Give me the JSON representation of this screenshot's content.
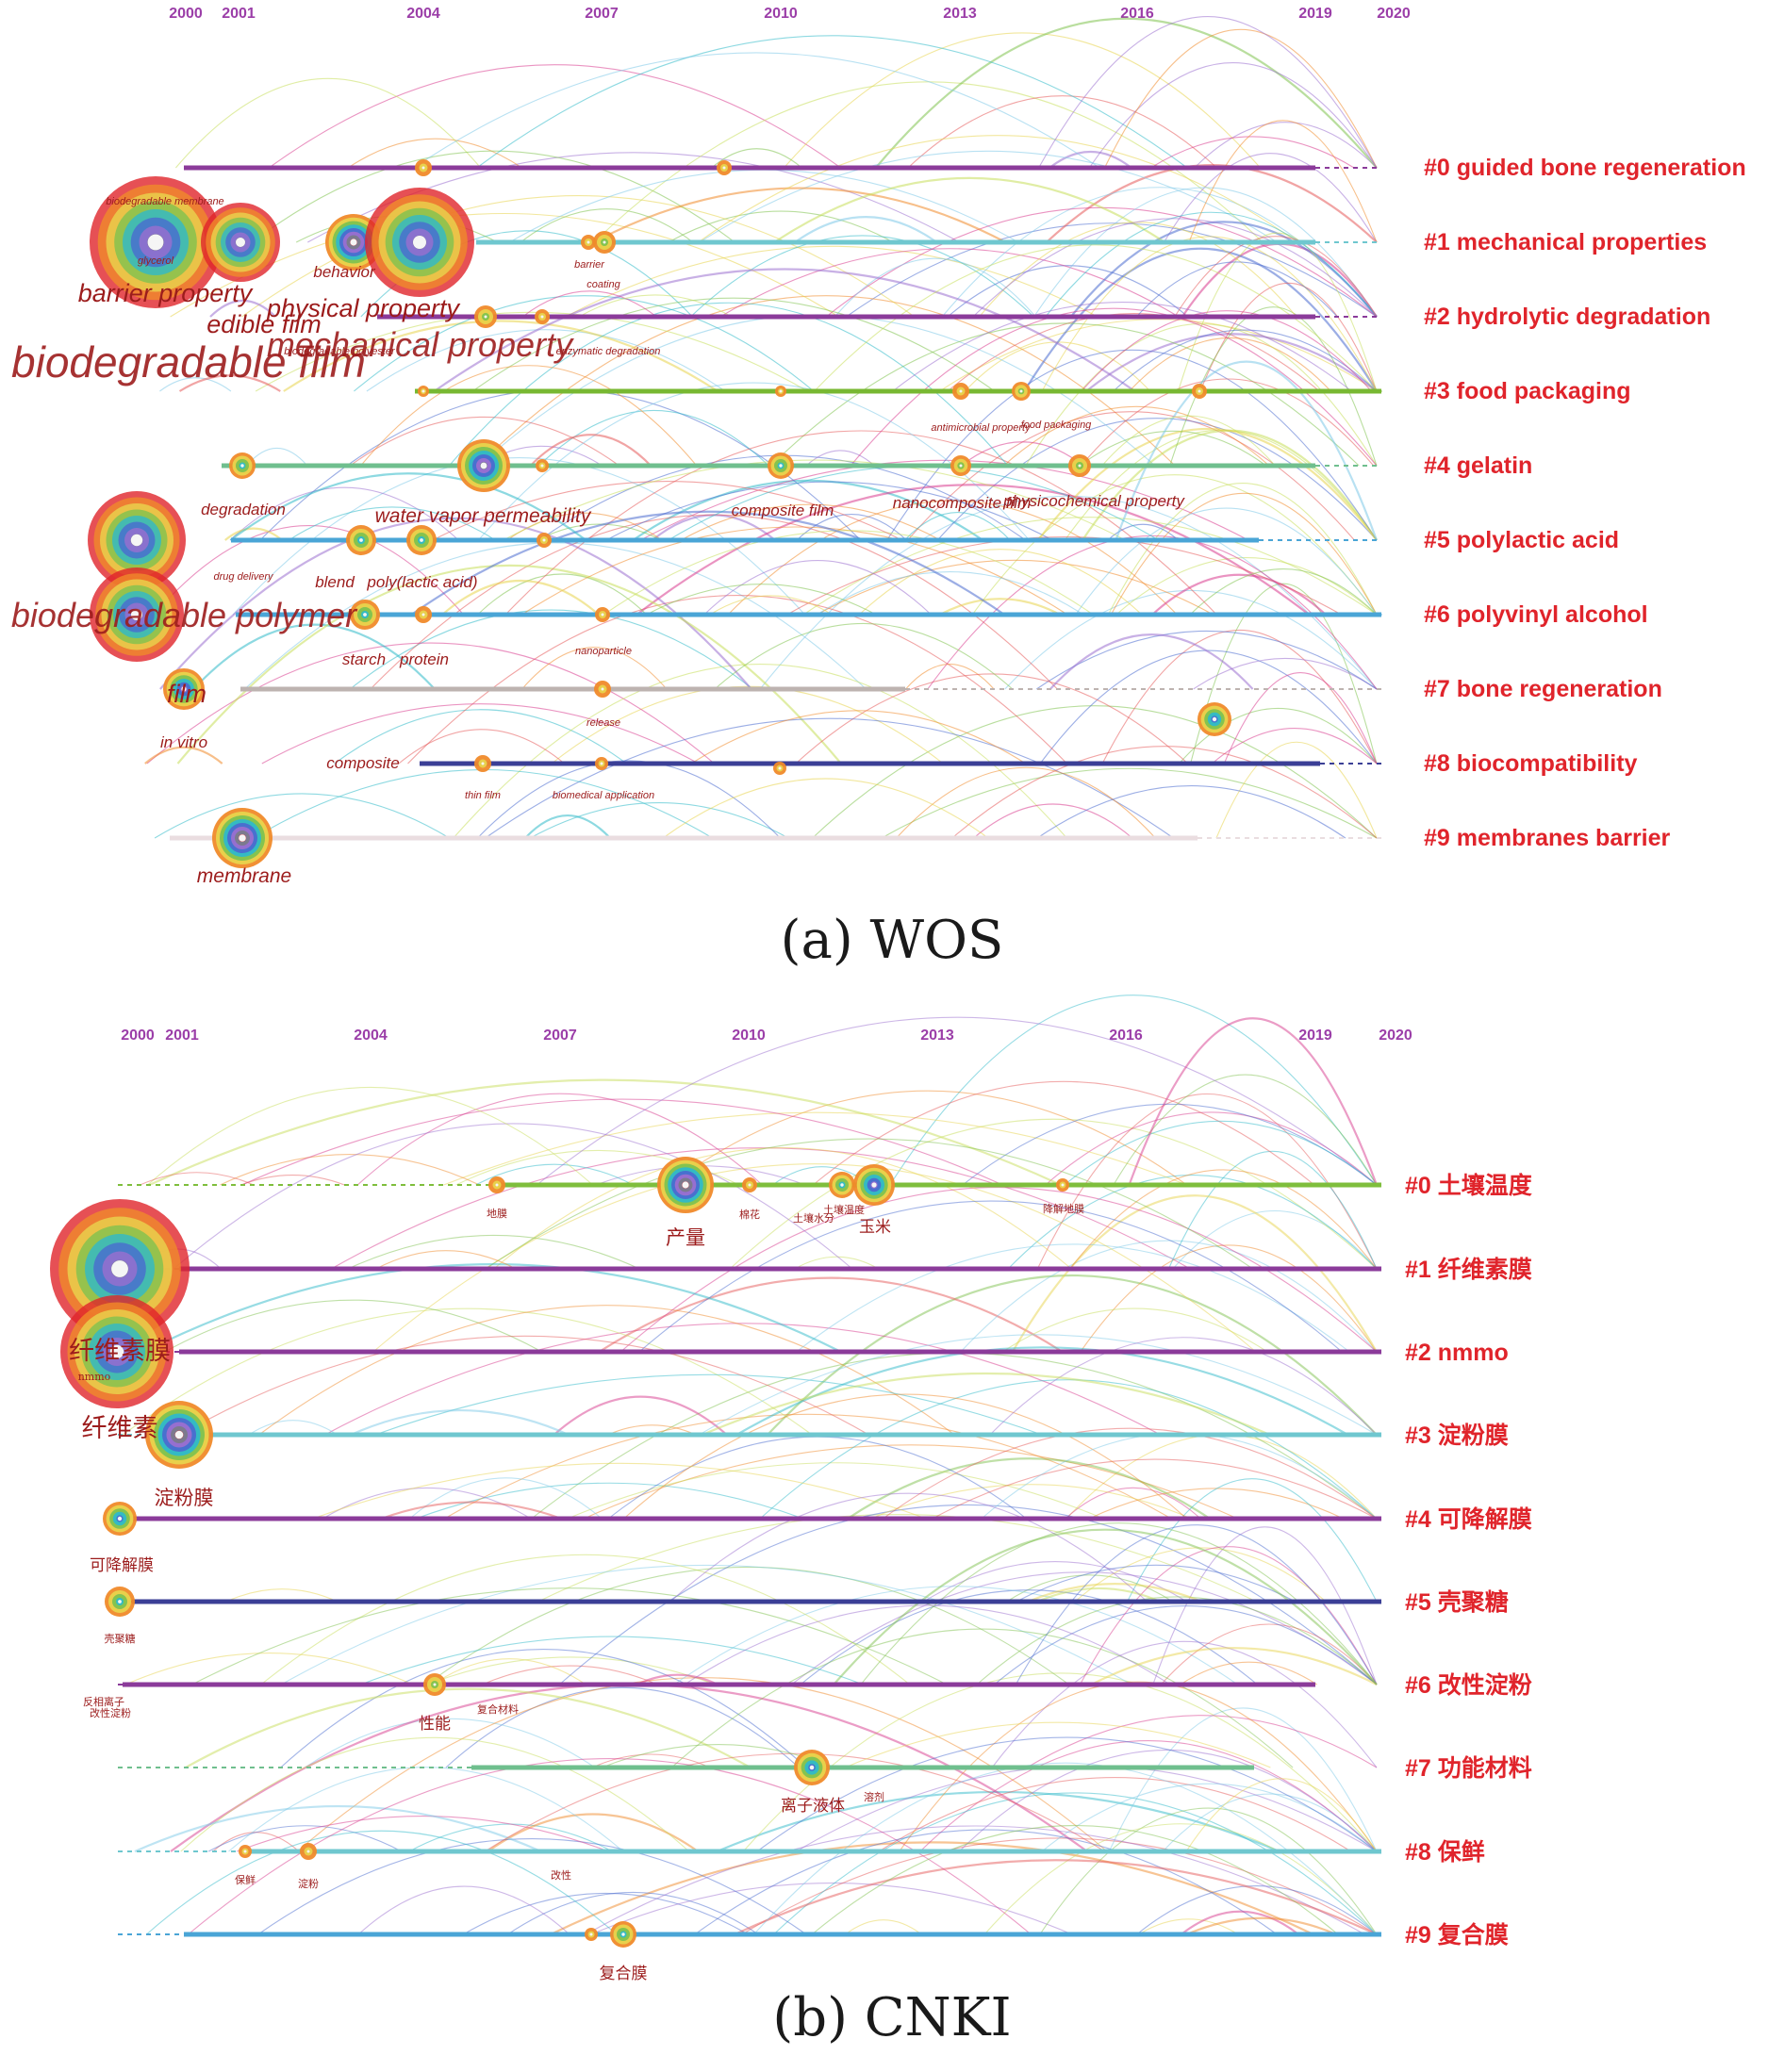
{
  "colors": {
    "year": "#9b3ea8",
    "cluster": "#e0242b",
    "keyword": "#9c1c1c",
    "caption": "#1a1a1a",
    "arc_palette": [
      "#4a6cd0",
      "#e8d44d",
      "#7fc24f",
      "#2fb9c9",
      "#d83a8e",
      "#f08a2a",
      "#9b6fd0",
      "#7ec9e8",
      "#c7de5a",
      "#e65a5a"
    ]
  },
  "panel_a": {
    "caption": "(a) WOS",
    "years": [
      "2000",
      "2001",
      "2004",
      "2007",
      "2010",
      "2013",
      "2016",
      "2019",
      "2020"
    ],
    "clusters": [
      {
        "label": "#0 guided bone regeneration",
        "color": "#8b3b9a"
      },
      {
        "label": "#1 mechanical properties",
        "color": "#6fc7cf"
      },
      {
        "label": "#2 hydrolytic degradation",
        "color": "#8b3b9a"
      },
      {
        "label": "#3 food packaging",
        "color": "#78b832"
      },
      {
        "label": "#4 gelatin",
        "color": "#6fbf8e"
      },
      {
        "label": "#5 polylactic acid",
        "color": "#4aa5d6"
      },
      {
        "label": "#6 polyvinyl alcohol",
        "color": "#4aa5d6"
      },
      {
        "label": "#7 bone regeneration",
        "color": "#bdb3b0"
      },
      {
        "label": "#8 biocompatibility",
        "color": "#3b3f96"
      },
      {
        "label": "#9 membranes barrier",
        "color": "#eadde0"
      }
    ],
    "keywords": [
      {
        "text": "biodegradable membrane",
        "size": "xs"
      },
      {
        "text": "glycerol",
        "size": "xs"
      },
      {
        "text": "barrier property",
        "size": "l"
      },
      {
        "text": "edible film",
        "size": "l"
      },
      {
        "text": "behavior",
        "size": "s"
      },
      {
        "text": "physical property",
        "size": "l"
      },
      {
        "text": "mechanical property",
        "size": "xl"
      },
      {
        "text": "biodegradable film",
        "size": "xxl"
      },
      {
        "text": "biodegradable polyester",
        "size": "xs"
      },
      {
        "text": "enzymatic degradation",
        "size": "xs"
      },
      {
        "text": "barrier",
        "size": "xs"
      },
      {
        "text": "coating",
        "size": "xs"
      },
      {
        "text": "antimicrobial property",
        "size": "xs"
      },
      {
        "text": "food packaging",
        "size": "xs"
      },
      {
        "text": "degradation",
        "size": "s"
      },
      {
        "text": "water vapor permeability",
        "size": "m"
      },
      {
        "text": "composite film",
        "size": "s"
      },
      {
        "text": "nanocomposite film",
        "size": "s"
      },
      {
        "text": "physicochemical property",
        "size": "s"
      },
      {
        "text": "drug delivery",
        "size": "xs"
      },
      {
        "text": "blend",
        "size": "s"
      },
      {
        "text": "poly(lactic acid)",
        "size": "s"
      },
      {
        "text": "biodegradable polymer",
        "size": "xl"
      },
      {
        "text": "starch",
        "size": "s"
      },
      {
        "text": "protein",
        "size": "s"
      },
      {
        "text": "nanoparticle",
        "size": "xs"
      },
      {
        "text": "film",
        "size": "l"
      },
      {
        "text": "release",
        "size": "xs"
      },
      {
        "text": "in vitro",
        "size": "s"
      },
      {
        "text": "composite",
        "size": "s"
      },
      {
        "text": "thin film",
        "size": "xs"
      },
      {
        "text": "biomedical application",
        "size": "xs"
      },
      {
        "text": "membrane",
        "size": "m"
      }
    ]
  },
  "panel_b": {
    "caption": "(b) CNKI",
    "years": [
      "2000",
      "2001",
      "2004",
      "2007",
      "2010",
      "2013",
      "2016",
      "2019",
      "2020"
    ],
    "clusters": [
      {
        "label": "#0 土壤温度",
        "color": "#7fbe3c"
      },
      {
        "label": "#1 纤维素膜",
        "color": "#8b3b9a"
      },
      {
        "label": "#2 nmmo",
        "color": "#8b3b9a"
      },
      {
        "label": "#3 淀粉膜",
        "color": "#6fc7cf"
      },
      {
        "label": "#4 可降解膜",
        "color": "#8b3b9a"
      },
      {
        "label": "#5 壳聚糖",
        "color": "#3b3f96"
      },
      {
        "label": "#6 改性淀粉",
        "color": "#8b3b9a"
      },
      {
        "label": "#7 功能材料",
        "color": "#6fbf8e"
      },
      {
        "label": "#8 保鲜",
        "color": "#6fc7cf"
      },
      {
        "label": "#9 复合膜",
        "color": "#4aa5d6"
      }
    ],
    "keywords": [
      {
        "text": "地膜",
        "size": "xs"
      },
      {
        "text": "产量",
        "size": "m"
      },
      {
        "text": "棉花",
        "size": "xs"
      },
      {
        "text": "土壤水分",
        "size": "xs"
      },
      {
        "text": "土壤温度",
        "size": "xs"
      },
      {
        "text": "玉米",
        "size": "s"
      },
      {
        "text": "降解地膜",
        "size": "xs"
      },
      {
        "text": "纤维素膜",
        "size": "l"
      },
      {
        "text": "nmmo",
        "size": "xs"
      },
      {
        "text": "纤维素",
        "size": "l"
      },
      {
        "text": "淀粉膜",
        "size": "m"
      },
      {
        "text": "可降解膜",
        "size": "s"
      },
      {
        "text": "壳聚糖",
        "size": "xs"
      },
      {
        "text": "反相离子",
        "size": "xs"
      },
      {
        "text": "改性淀粉",
        "size": "xs"
      },
      {
        "text": "性能",
        "size": "s"
      },
      {
        "text": "复合材料",
        "size": "xs"
      },
      {
        "text": "离子液体",
        "size": "s"
      },
      {
        "text": "溶剂",
        "size": "xs"
      },
      {
        "text": "保鲜",
        "size": "xs"
      },
      {
        "text": "淀粉",
        "size": "xs"
      },
      {
        "text": "改性",
        "size": "xs"
      },
      {
        "text": "复合膜",
        "size": "s"
      }
    ]
  }
}
